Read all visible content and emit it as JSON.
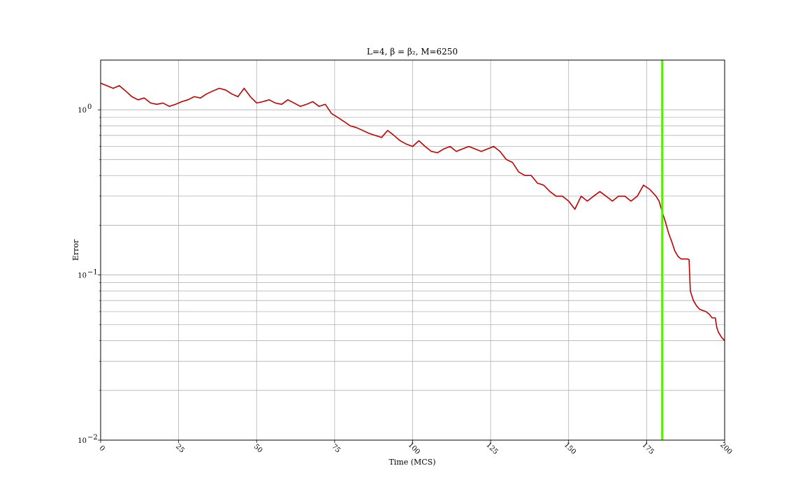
{
  "chart_data": {
    "type": "line",
    "title": "L=4, β = β₂, M=6250",
    "xlabel": "Time (MCS)",
    "ylabel": "Error",
    "xlim": [
      0,
      200
    ],
    "ylim": [
      0.01,
      2.0
    ],
    "yscale": "log",
    "grid": true,
    "x_ticks": [
      0,
      25,
      50,
      75,
      100,
      125,
      150,
      175,
      200
    ],
    "x_tick_labels": [
      "0",
      "25",
      "50",
      "75",
      "100",
      "125",
      "150",
      "175",
      "200"
    ],
    "y_major_ticks": [
      0.01,
      0.1,
      1
    ],
    "y_tick_labels": [
      {
        "base": "10",
        "exp": "−2"
      },
      {
        "base": "10",
        "exp": "−1"
      },
      {
        "base": "10",
        "exp": "0"
      }
    ],
    "series": [
      {
        "color": "#c00000",
        "x": [
          0,
          2,
          4,
          6,
          8,
          10,
          12,
          14,
          16,
          18,
          20,
          22,
          24,
          26,
          28,
          30,
          32,
          34,
          36,
          38,
          40,
          42,
          44,
          46,
          48,
          50,
          52,
          54,
          56,
          58,
          60,
          62,
          64,
          66,
          68,
          70,
          72,
          74,
          76,
          78,
          80,
          82,
          84,
          86,
          88,
          90,
          92,
          94,
          96,
          98,
          100,
          102,
          104,
          106,
          108,
          110,
          112,
          114,
          116,
          118,
          120,
          122,
          124,
          126,
          128,
          130,
          132,
          134,
          136,
          138,
          140,
          142,
          144,
          146,
          148,
          150,
          152,
          154,
          156,
          158,
          160,
          162,
          164,
          166,
          168,
          170,
          172,
          174,
          176,
          178,
          179,
          180,
          181,
          182,
          183,
          184,
          185,
          186,
          187,
          188,
          188.6,
          189,
          190,
          191,
          192,
          194,
          195,
          196,
          197,
          197.5,
          198,
          199,
          200
        ],
        "y": [
          1.45,
          1.4,
          1.35,
          1.4,
          1.3,
          1.2,
          1.15,
          1.18,
          1.1,
          1.08,
          1.1,
          1.05,
          1.08,
          1.12,
          1.15,
          1.2,
          1.18,
          1.25,
          1.3,
          1.35,
          1.32,
          1.25,
          1.2,
          1.35,
          1.2,
          1.1,
          1.12,
          1.15,
          1.1,
          1.08,
          1.15,
          1.1,
          1.05,
          1.08,
          1.12,
          1.05,
          1.08,
          0.95,
          0.9,
          0.85,
          0.8,
          0.78,
          0.75,
          0.72,
          0.7,
          0.68,
          0.75,
          0.7,
          0.65,
          0.62,
          0.6,
          0.65,
          0.6,
          0.56,
          0.55,
          0.58,
          0.6,
          0.56,
          0.58,
          0.6,
          0.58,
          0.56,
          0.58,
          0.6,
          0.56,
          0.5,
          0.48,
          0.42,
          0.4,
          0.4,
          0.36,
          0.35,
          0.32,
          0.3,
          0.3,
          0.28,
          0.25,
          0.3,
          0.28,
          0.3,
          0.32,
          0.3,
          0.28,
          0.3,
          0.3,
          0.28,
          0.3,
          0.35,
          0.33,
          0.3,
          0.28,
          0.24,
          0.21,
          0.18,
          0.16,
          0.14,
          0.13,
          0.125,
          0.125,
          0.125,
          0.124,
          0.08,
          0.07,
          0.065,
          0.062,
          0.06,
          0.058,
          0.055,
          0.055,
          0.048,
          0.045,
          0.042,
          0.04
        ]
      }
    ],
    "annotations": [
      {
        "type": "vertical_line",
        "x": 180,
        "color": "#55ee00"
      }
    ]
  }
}
